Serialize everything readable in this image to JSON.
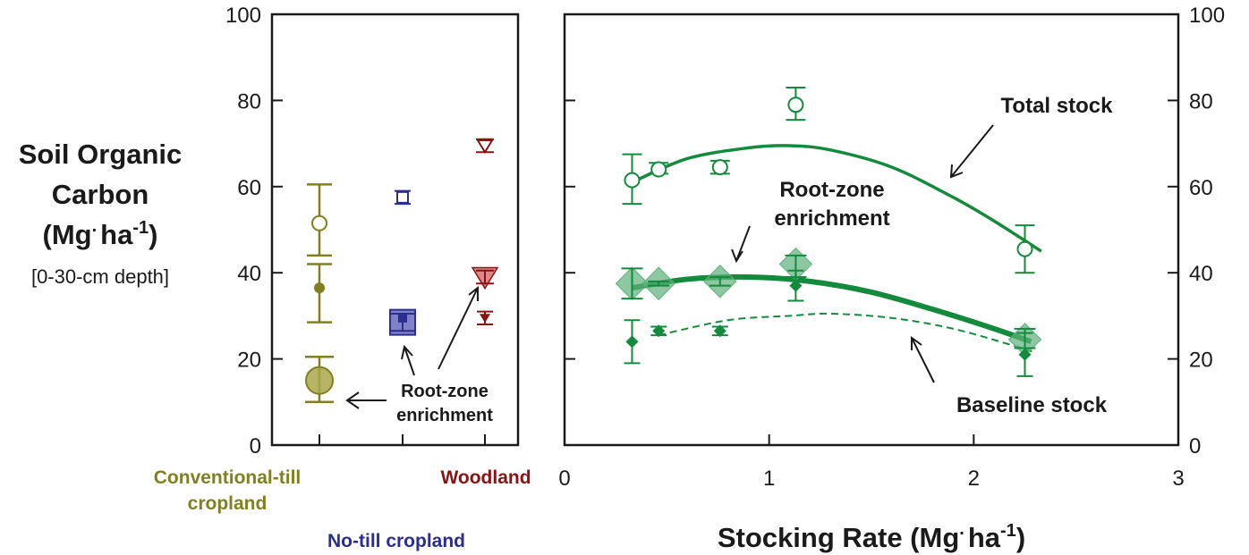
{
  "colors": {
    "conventional": "#808020",
    "notill": "#2b2d8f",
    "woodland": "#8b1212",
    "grazing": "#138a3c",
    "grazing_fill": "#5eb07a",
    "conv_fill": "#a8a84a",
    "notill_fill": "#6a6cc0",
    "wood_fill": "#d86a6a"
  },
  "y_axis": {
    "label_line1": "Soil Organic",
    "label_line2": "Carbon",
    "label_line3_main": "(Mg",
    "label_line3_dot": ".",
    "label_line3_unit": "ha",
    "label_line3_sup": "-1",
    "label_line3_close": ")",
    "depth": "[0-30-cm depth]"
  },
  "x_axis_right": {
    "label_main": "Stocking Rate (Mg",
    "label_dot": ".",
    "label_unit": "ha",
    "label_sup": "-1",
    "label_close": ")"
  },
  "categories": {
    "conventional_line1": "Conventional-till",
    "conventional_line2": "cropland",
    "notill": "No-till cropland",
    "woodland": "Woodland"
  },
  "annotations": {
    "left_rz_line1": "Root-zone",
    "left_rz_line2": "enrichment",
    "total": "Total stock",
    "rz_line1": "Root-zone",
    "rz_line2": "enrichment",
    "baseline": "Baseline stock"
  },
  "chart_data": [
    {
      "type": "scatter",
      "panel": "left",
      "ylim": [
        0,
        100
      ],
      "y_ticks": [
        0,
        20,
        40,
        60,
        80,
        100
      ],
      "categories": [
        "Conventional-till cropland",
        "No-till cropland",
        "Woodland"
      ],
      "series": [
        {
          "name": "Total stock",
          "marker": "open",
          "values": [
            51.5,
            57.5,
            69.5
          ],
          "err_low": [
            44,
            56,
            68
          ],
          "err_high": [
            60.5,
            59,
            71
          ]
        },
        {
          "name": "Baseline stock",
          "marker": "filled",
          "values": [
            36.5,
            29.5,
            29.5
          ],
          "err_low": [
            28.5,
            28.5,
            28
          ],
          "err_high": [
            42,
            30.5,
            31
          ]
        },
        {
          "name": "Root-zone enrichment",
          "marker": "large",
          "values": [
            15,
            28.5,
            39
          ],
          "err_low": [
            10,
            26.5,
            37.5
          ],
          "err_high": [
            20.5,
            30.5,
            40.5
          ]
        }
      ]
    },
    {
      "type": "scatter",
      "panel": "right",
      "xlim": [
        0,
        3
      ],
      "ylim": [
        0,
        100
      ],
      "x_ticks": [
        0,
        1,
        2,
        3
      ],
      "y_ticks": [
        0,
        20,
        40,
        60,
        80,
        100
      ],
      "series": [
        {
          "name": "Total stock",
          "marker": "open-circle",
          "x": [
            0.33,
            0.46,
            0.76,
            1.13,
            2.25
          ],
          "values": [
            61.5,
            64,
            64.5,
            79,
            45.5
          ],
          "err_low": [
            56,
            63,
            63,
            75.5,
            40
          ],
          "err_high": [
            67.5,
            65.5,
            66,
            83,
            51
          ]
        },
        {
          "name": "Root-zone enrichment",
          "marker": "large-diamond",
          "x": [
            0.33,
            0.46,
            0.76,
            1.13,
            2.25
          ],
          "values": [
            37.5,
            37.5,
            38,
            42,
            24.5
          ],
          "err_low": [
            34,
            37,
            37,
            39,
            22.5
          ],
          "err_high": [
            41,
            38,
            39,
            44,
            27
          ]
        },
        {
          "name": "Baseline stock",
          "marker": "filled-diamond",
          "x": [
            0.33,
            0.46,
            0.76,
            1.13,
            2.25
          ],
          "values": [
            24,
            26.5,
            26.5,
            37,
            21
          ],
          "err_low": [
            19,
            25.5,
            25.5,
            33.5,
            16
          ],
          "err_high": [
            29,
            27.5,
            27.5,
            40.5,
            26
          ]
        }
      ],
      "fits": [
        {
          "name": "Total stock",
          "style": "solid",
          "x": [
            0.33,
            0.6,
            0.9,
            1.1,
            1.3,
            1.6,
            1.9,
            2.1,
            2.33
          ],
          "values": [
            61,
            66.5,
            69,
            69.5,
            68.5,
            64.5,
            57.5,
            52,
            45
          ]
        },
        {
          "name": "Root-zone enrichment",
          "style": "solid-thick",
          "x": [
            0.33,
            0.6,
            0.9,
            1.2,
            1.5,
            1.8,
            2.1,
            2.28
          ],
          "values": [
            36.5,
            38.5,
            39,
            38,
            35.5,
            31.5,
            27,
            24
          ]
        },
        {
          "name": "Baseline stock",
          "style": "dashed",
          "x": [
            0.46,
            0.8,
            1.1,
            1.3,
            1.6,
            1.9,
            2.2,
            2.3
          ],
          "values": [
            25.5,
            29,
            30,
            30.5,
            29.5,
            27,
            23,
            21.5
          ]
        }
      ]
    }
  ]
}
